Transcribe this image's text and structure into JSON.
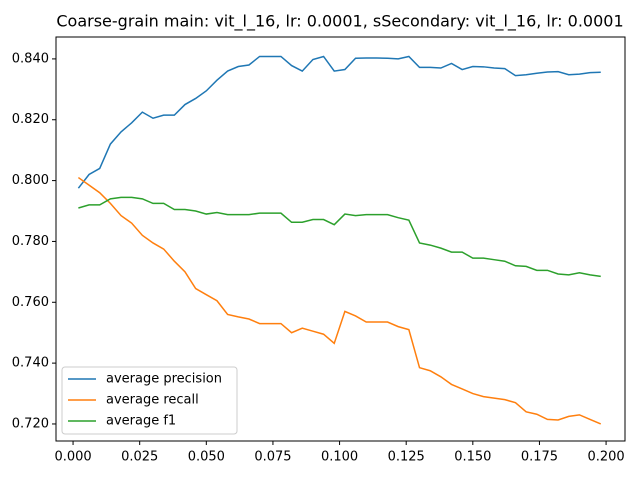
{
  "chart_data": {
    "type": "line",
    "title": "Coarse-grain main: vit_l_16, lr: 0.0001, sSecondary: vit_l_16, lr: 0.0001",
    "x": [
      0.002,
      0.006,
      0.01,
      0.014,
      0.018,
      0.022,
      0.026,
      0.03,
      0.034,
      0.038,
      0.042,
      0.046,
      0.05,
      0.054,
      0.058,
      0.062,
      0.066,
      0.07,
      0.074,
      0.078,
      0.082,
      0.086,
      0.09,
      0.094,
      0.098,
      0.102,
      0.106,
      0.11,
      0.114,
      0.118,
      0.122,
      0.126,
      0.13,
      0.134,
      0.138,
      0.142,
      0.146,
      0.15,
      0.154,
      0.158,
      0.162,
      0.166,
      0.17,
      0.174,
      0.178,
      0.182,
      0.186,
      0.19,
      0.194,
      0.198
    ],
    "series": [
      {
        "name": "average precision",
        "color": "#1f77b4",
        "values": [
          0.7975,
          0.802,
          0.804,
          0.812,
          0.816,
          0.819,
          0.8225,
          0.8205,
          0.8215,
          0.8215,
          0.825,
          0.827,
          0.8295,
          0.833,
          0.836,
          0.8375,
          0.838,
          0.8408,
          0.8408,
          0.8408,
          0.8378,
          0.836,
          0.8398,
          0.8408,
          0.836,
          0.8365,
          0.8402,
          0.8403,
          0.8403,
          0.8402,
          0.84,
          0.8408,
          0.8372,
          0.8372,
          0.837,
          0.8385,
          0.8365,
          0.8375,
          0.8374,
          0.837,
          0.8368,
          0.8345,
          0.8348,
          0.8353,
          0.8357,
          0.8358,
          0.8348,
          0.835,
          0.8355,
          0.8356
        ]
      },
      {
        "name": "average recall",
        "color": "#ff7f0e",
        "values": [
          0.801,
          0.7985,
          0.796,
          0.7925,
          0.7885,
          0.786,
          0.782,
          0.7795,
          0.7775,
          0.7735,
          0.77,
          0.7645,
          0.7625,
          0.7605,
          0.756,
          0.7552,
          0.7545,
          0.753,
          0.753,
          0.753,
          0.75,
          0.7515,
          0.7505,
          0.7495,
          0.7465,
          0.757,
          0.7555,
          0.7535,
          0.7535,
          0.7535,
          0.752,
          0.751,
          0.7385,
          0.7375,
          0.7355,
          0.733,
          0.7315,
          0.73,
          0.729,
          0.7285,
          0.728,
          0.727,
          0.724,
          0.7232,
          0.7215,
          0.7213,
          0.7225,
          0.723,
          0.7215,
          0.72
        ]
      },
      {
        "name": "average f1",
        "color": "#2ca02c",
        "values": [
          0.791,
          0.792,
          0.792,
          0.794,
          0.7945,
          0.7945,
          0.794,
          0.7925,
          0.7925,
          0.7905,
          0.7905,
          0.79,
          0.789,
          0.7895,
          0.7888,
          0.7888,
          0.7888,
          0.7893,
          0.7893,
          0.7893,
          0.7863,
          0.7863,
          0.7872,
          0.7872,
          0.7855,
          0.789,
          0.7885,
          0.7888,
          0.7888,
          0.7888,
          0.7878,
          0.787,
          0.7795,
          0.7788,
          0.7778,
          0.7765,
          0.7765,
          0.7745,
          0.7745,
          0.774,
          0.7735,
          0.772,
          0.7718,
          0.7705,
          0.7705,
          0.7693,
          0.769,
          0.7697,
          0.769,
          0.7685
        ]
      }
    ],
    "xlim": [
      -0.0064,
      0.2071
    ],
    "ylim": [
      0.7144,
      0.8472
    ],
    "xticks": [
      {
        "value": 0,
        "label": "0.000"
      },
      {
        "value": 0.025,
        "label": "0.025"
      },
      {
        "value": 0.05,
        "label": "0.050"
      },
      {
        "value": 0.075,
        "label": "0.075"
      },
      {
        "value": 0.1,
        "label": "0.100"
      },
      {
        "value": 0.125,
        "label": "0.125"
      },
      {
        "value": 0.15,
        "label": "0.150"
      },
      {
        "value": 0.175,
        "label": "0.175"
      },
      {
        "value": 0.2,
        "label": "0.200"
      }
    ],
    "yticks": [
      {
        "value": 0.72,
        "label": "0.720"
      },
      {
        "value": 0.74,
        "label": "0.740"
      },
      {
        "value": 0.76,
        "label": "0.760"
      },
      {
        "value": 0.78,
        "label": "0.780"
      },
      {
        "value": 0.8,
        "label": "0.800"
      },
      {
        "value": 0.82,
        "label": "0.820"
      },
      {
        "value": 0.84,
        "label": "0.840"
      }
    ],
    "grid": false,
    "legend": "lower left"
  }
}
